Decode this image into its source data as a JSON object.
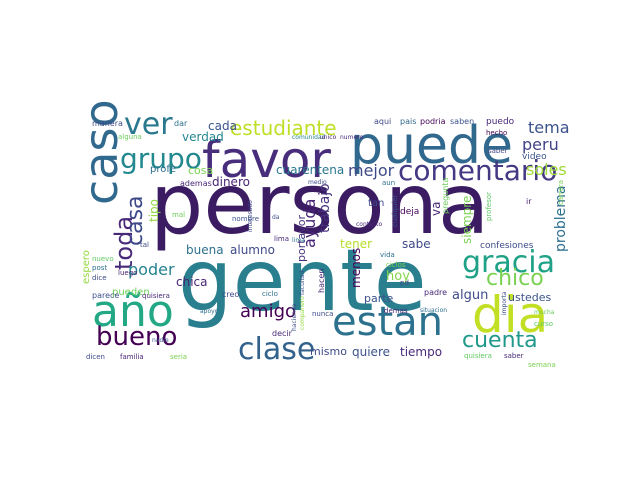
{
  "words": [
    {
      "text": "persona",
      "color": "#3b1c63"
    },
    {
      "text": "gente",
      "color": "#2a7f8e"
    },
    {
      "text": "puede",
      "color": "#31688e"
    },
    {
      "text": "favor",
      "color": "#472d7b"
    },
    {
      "text": "estan",
      "color": "#2c728e"
    },
    {
      "text": "dia",
      "color": "#c2df23"
    },
    {
      "text": "año",
      "color": "#22a884"
    },
    {
      "text": "caso",
      "color": "#31688e"
    },
    {
      "text": "comentario",
      "color": "#443983"
    },
    {
      "text": "grupo",
      "color": "#23898e"
    },
    {
      "text": "gracia",
      "color": "#1fa187"
    },
    {
      "text": "ver",
      "color": "#2a788e"
    },
    {
      "text": "clase",
      "color": "#33638d"
    },
    {
      "text": "bueno",
      "color": "#440154"
    },
    {
      "text": "estudiante",
      "color": "#bddf26"
    },
    {
      "text": "cuenta",
      "color": "#1f988b"
    },
    {
      "text": "chico",
      "color": "#7ad151"
    },
    {
      "text": "toda",
      "color": "#482878"
    },
    {
      "text": "casa",
      "color": "#3e4989"
    },
    {
      "text": "amigo",
      "color": "#440154"
    },
    {
      "text": "tema",
      "color": "#3b528b"
    },
    {
      "text": "mejor",
      "color": "#3e4a89"
    },
    {
      "text": "peru",
      "color": "#414487"
    },
    {
      "text": "poder",
      "color": "#26828e"
    },
    {
      "text": "ayuda",
      "color": "#482475"
    },
    {
      "text": "problema",
      "color": "#2d708e"
    },
    {
      "text": "cuarentena",
      "color": "#2a768e"
    },
    {
      "text": "soles",
      "color": "#a0da39"
    },
    {
      "text": "verdad",
      "color": "#24868e"
    },
    {
      "text": "cada",
      "color": "#3b528b"
    },
    {
      "text": "alumno",
      "color": "#3e4989"
    },
    {
      "text": "buena",
      "color": "#2d708e"
    },
    {
      "text": "dinero",
      "color": "#482475"
    },
    {
      "text": "trabajo",
      "color": "#46337f"
    },
    {
      "text": "portavor",
      "color": "#46327e"
    },
    {
      "text": "quiere",
      "color": "#3b528b"
    },
    {
      "text": "tiempo",
      "color": "#482878"
    },
    {
      "text": "mismo",
      "color": "#3e4a89"
    },
    {
      "text": "chica",
      "color": "#482475"
    },
    {
      "text": "ustedes",
      "color": "#3b528b"
    },
    {
      "text": "algun",
      "color": "#3e4a89"
    },
    {
      "text": "siempre",
      "color": "#7ad151"
    },
    {
      "text": "tener",
      "color": "#b5de2b"
    },
    {
      "text": "menos",
      "color": "#440154"
    },
    {
      "text": "parte",
      "color": "#3b528b"
    },
    {
      "text": "hoy",
      "color": "#86d549"
    },
    {
      "text": "sabe",
      "color": "#3e4989"
    },
    {
      "text": "pueden",
      "color": "#6ccd5a"
    },
    {
      "text": "cosa",
      "color": "#7ad151"
    },
    {
      "text": "tipo",
      "color": "#93d741"
    },
    {
      "text": "profe",
      "color": "#2d708e"
    },
    {
      "text": "ademas",
      "color": "#482878"
    },
    {
      "text": "video",
      "color": "#3b528b"
    },
    {
      "text": "espero",
      "color": "#95d840"
    },
    {
      "text": "confesiones",
      "color": "#3e4a89"
    },
    {
      "text": "va",
      "color": "#482878"
    },
    {
      "text": "tan",
      "color": "#3e4989"
    },
    {
      "text": "deja",
      "color": "#440154"
    },
    {
      "text": "aqui",
      "color": "#3e4989"
    },
    {
      "text": "pais",
      "color": "#31688e"
    },
    {
      "text": "podria",
      "color": "#440154"
    },
    {
      "text": "saben",
      "color": "#3b528b"
    },
    {
      "text": "puedo",
      "color": "#482878"
    },
    {
      "text": "manera",
      "color": "#3e4a89"
    },
    {
      "text": "dar",
      "color": "#2d708e"
    },
    {
      "text": "comunidad",
      "color": "#26828e"
    },
    {
      "text": "unico",
      "color": "#482475"
    },
    {
      "text": "numero",
      "color": "#482878"
    },
    {
      "text": "alguna",
      "color": "#6ccd5a"
    },
    {
      "text": "saber",
      "color": "#3e4989"
    },
    {
      "text": "hecho",
      "color": "#440154"
    },
    {
      "text": "aun",
      "color": "#2d708e"
    },
    {
      "text": "medio",
      "color": "#3e4a89"
    },
    {
      "text": "pregunta",
      "color": "#6ccd5a"
    },
    {
      "text": "profesor",
      "color": "#5ec962"
    },
    {
      "text": "ir",
      "color": "#482475"
    },
    {
      "text": "carrera",
      "color": "#7ad151"
    },
    {
      "text": "nuevo",
      "color": "#5ec962"
    },
    {
      "text": "post",
      "color": "#2d708e"
    },
    {
      "text": "dice",
      "color": "#3e4989"
    },
    {
      "text": "luego",
      "color": "#482475"
    },
    {
      "text": "parece",
      "color": "#3b528b"
    },
    {
      "text": "quisiera",
      "color": "#482878"
    },
    {
      "text": "creo",
      "color": "#3e4a89"
    },
    {
      "text": "ciclo",
      "color": "#2d708e"
    },
    {
      "text": "facultad",
      "color": "#3b528b"
    },
    {
      "text": "hacen",
      "color": "#482475"
    },
    {
      "text": "pd",
      "color": "#3e4989"
    },
    {
      "text": "padre",
      "color": "#482878"
    },
    {
      "text": "apoyo",
      "color": "#2d708e"
    },
    {
      "text": "nunca",
      "color": "#3e4989"
    },
    {
      "text": "demas",
      "color": "#482475"
    },
    {
      "text": "situacion",
      "color": "#2d708e"
    },
    {
      "text": "nadie",
      "color": "#3b528b"
    },
    {
      "text": "decir",
      "color": "#482878"
    },
    {
      "text": "mucha",
      "color": "#6ccd5a"
    },
    {
      "text": "curso",
      "color": "#5ec962"
    },
    {
      "text": "importa",
      "color": "#3b528b"
    },
    {
      "text": "dicen",
      "color": "#3e4a89"
    },
    {
      "text": "familia",
      "color": "#482475"
    },
    {
      "text": "seria",
      "color": "#7ad151"
    },
    {
      "text": "quisiera",
      "color": "#5ec962"
    },
    {
      "text": "saber",
      "color": "#482878"
    },
    {
      "text": "semana",
      "color": "#7ad151"
    },
    {
      "text": "nombre",
      "color": "#3b528b"
    },
    {
      "text": "interesado",
      "color": "#3e4989"
    },
    {
      "text": "contacto",
      "color": "#482475"
    },
    {
      "text": "cualquier",
      "color": "#3b528b"
    },
    {
      "text": "vida",
      "color": "#2d708e"
    },
    {
      "text": "lima",
      "color": "#482878"
    },
    {
      "text": "tal",
      "color": "#3e4a89"
    },
    {
      "text": "mal",
      "color": "#6ccd5a"
    },
    {
      "text": "da",
      "color": "#3e4a89"
    },
    {
      "text": "lima",
      "color": "#2d708e"
    },
    {
      "text": "ciclos",
      "color": "#7ad151"
    },
    {
      "text": "companero",
      "color": "#95d840"
    },
    {
      "text": "hacienda",
      "color": "#3b528b"
    }
  ]
}
